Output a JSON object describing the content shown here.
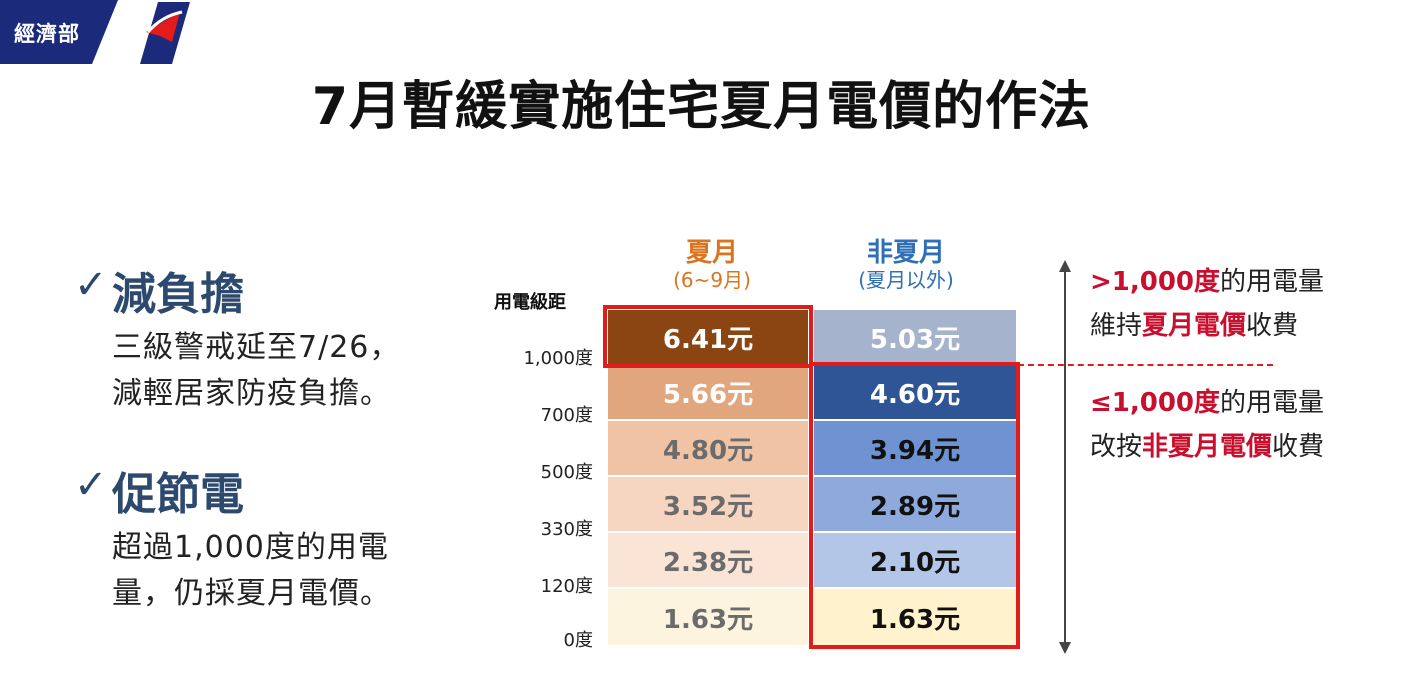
{
  "header": {
    "org_label": "經濟部"
  },
  "title": "7月暫緩實施住宅夏月電價的作法",
  "bullets": [
    {
      "check": "✓",
      "heading": "減負擔",
      "body_line1": "三級警戒延至7/26，",
      "body_line2": "減輕居家防疫負擔。"
    },
    {
      "check": "✓",
      "heading": "促節電",
      "body_line1": "超過1,000度的用電",
      "body_line2": "量，仍採夏月電價。"
    }
  ],
  "table": {
    "axis_title": "用電級距",
    "summer_header": {
      "main": "夏月",
      "sub": "(6~9月)"
    },
    "nonsummer_header": {
      "main": "非夏月",
      "sub": "(夏月以外)"
    },
    "tier_labels": [
      "1,000度",
      "700度",
      "500度",
      "330度",
      "120度",
      "0度"
    ],
    "rows": [
      {
        "summer": "6.41元",
        "nonsummer": "5.03元"
      },
      {
        "summer": "5.66元",
        "nonsummer": "4.60元"
      },
      {
        "summer": "4.80元",
        "nonsummer": "3.94元"
      },
      {
        "summer": "3.52元",
        "nonsummer": "2.89元"
      },
      {
        "summer": "2.38元",
        "nonsummer": "2.10元"
      },
      {
        "summer": "1.63元",
        "nonsummer": "1.63元"
      }
    ]
  },
  "notes": {
    "upper": {
      "hl1": ">1,000度",
      "t1": "的用電量",
      "t2": "維持",
      "hl2": "夏月電價",
      "t3": "收費"
    },
    "lower": {
      "hl1": "≤1,000度",
      "t1": "的用電量",
      "t2": "改按",
      "hl2": "非夏月電價",
      "t3": "收費"
    }
  },
  "colors": {
    "brand": "#1b2a7a",
    "highlight_red": "#e31b1b",
    "summer_orange": "#d9741f",
    "nonsummer_blue": "#2e6fb5"
  }
}
